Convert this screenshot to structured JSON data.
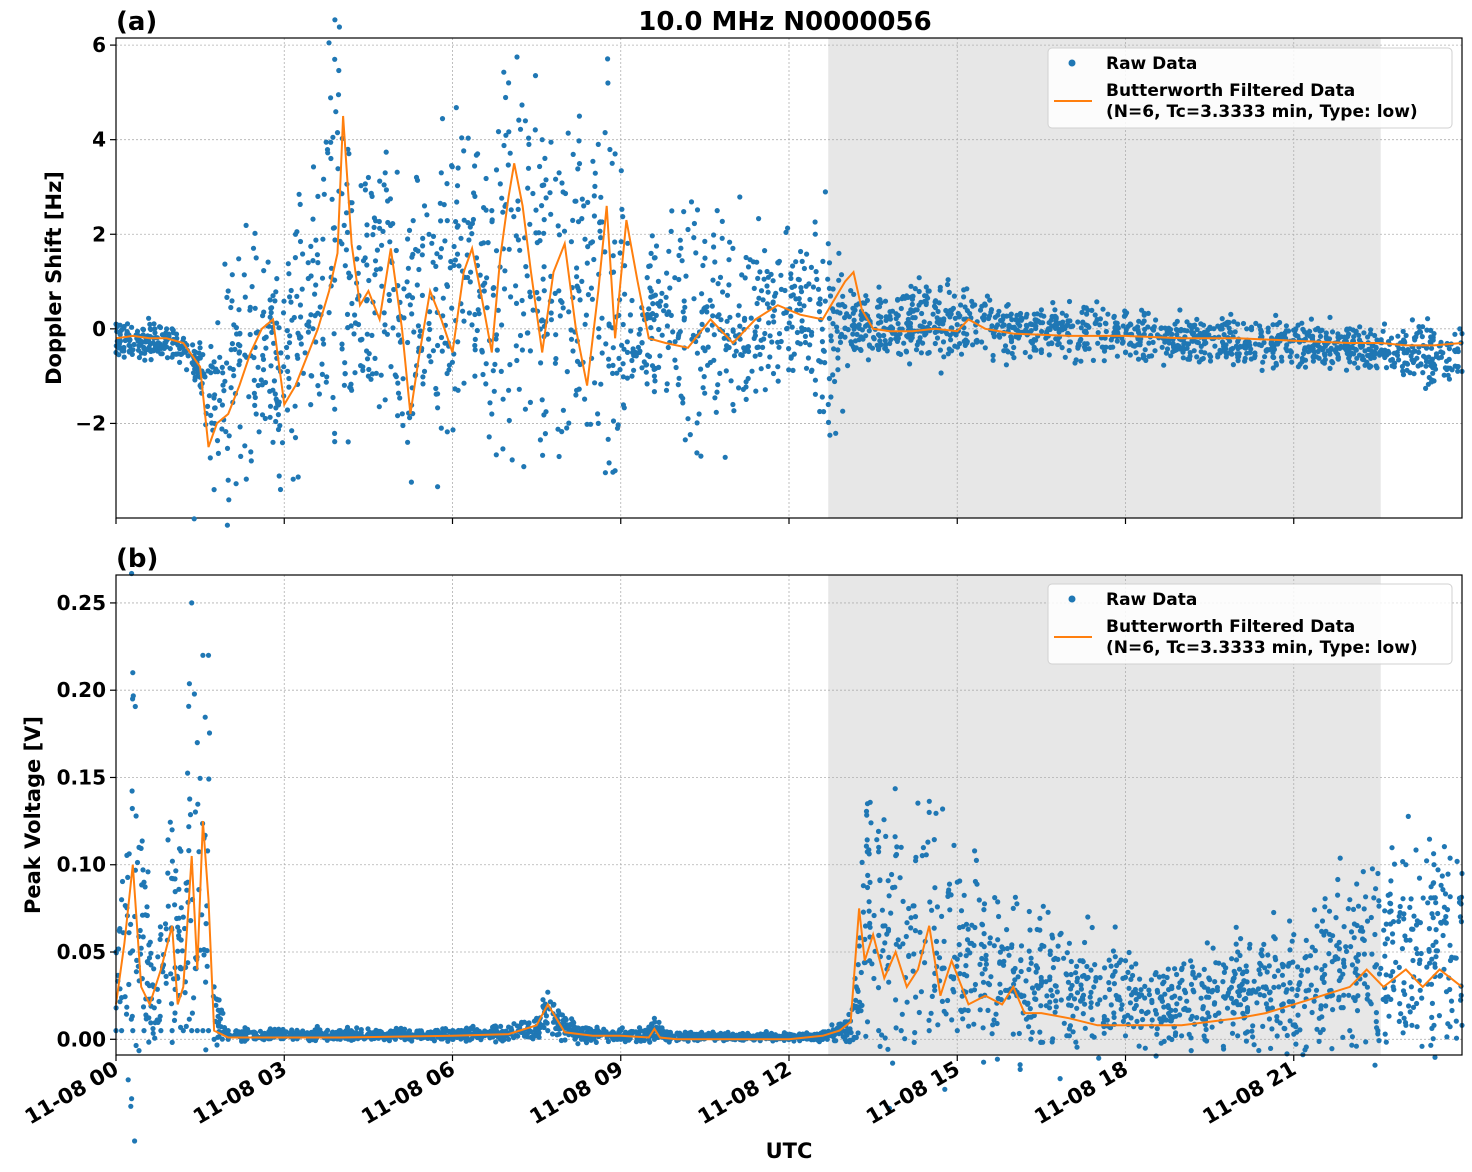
{
  "figure": {
    "title": "10.0 MHz N0000056",
    "xlabel": "UTC",
    "x_tick_labels": [
      "11-08 00",
      "11-08 03",
      "11-08 06",
      "11-08 09",
      "11-08 12",
      "11-08 15",
      "11-08 18",
      "11-08 21"
    ]
  },
  "colors": {
    "raw": "#1f77b4",
    "filtered": "#ff7f0e",
    "shade": "#e7e7e7",
    "grid": "#b0b0b0"
  },
  "chart_data": [
    {
      "type": "scatter",
      "panel_label": "(a)",
      "title": "10.0 MHz N0000056",
      "ylabel": "Doppler Shift [Hz]",
      "xlabel": "",
      "x_unit": "hours UTC on 11-08",
      "xlim": [
        0,
        24
      ],
      "ylim": [
        -4.0,
        6.15
      ],
      "y_ticks": [
        -2,
        0,
        2,
        4,
        6
      ],
      "y_tick_labels": [
        "−2",
        "0",
        "2",
        "4",
        "6"
      ],
      "grid": true,
      "shaded_x_range": [
        12.7,
        22.55
      ],
      "legend": {
        "position": "top-right",
        "entries": [
          "Raw Data",
          "Butterworth Filtered Data",
          "(N=6, Tc=3.3333 min, Type: low)"
        ]
      },
      "series": [
        {
          "name": "Raw Data",
          "style": "points",
          "envelope_x": [
            0,
            1.0,
            1.5,
            1.75,
            2.0,
            2.5,
            2.8,
            3.2,
            3.6,
            3.9,
            4.2,
            4.5,
            4.8,
            5.2,
            5.5,
            5.8,
            6.1,
            6.4,
            6.7,
            7.0,
            7.3,
            7.6,
            7.9,
            8.2,
            8.6,
            8.9,
            9.2,
            9.6,
            10.2,
            11.0,
            11.8,
            12.4,
            12.7,
            13.2,
            13.6,
            14.5,
            15.5,
            16.5,
            18.0,
            20.0,
            22.0,
            23.5,
            24.0
          ],
          "envelope_min": [
            -0.5,
            -0.6,
            -1.2,
            -3.4,
            -3.2,
            -1.8,
            -2.4,
            -2.3,
            -1.2,
            -1.7,
            -1.3,
            -1.0,
            -1.5,
            -2.4,
            -0.9,
            -2.1,
            -1.3,
            -1.0,
            -1.8,
            -1.3,
            -1.7,
            -1.5,
            -2.7,
            -1.4,
            -2.0,
            -3.0,
            -1.0,
            -1.0,
            -1.9,
            -1.6,
            -0.8,
            -0.9,
            -1.6,
            -0.4,
            -0.4,
            -0.5,
            -0.4,
            -0.5,
            -0.5,
            -0.6,
            -0.7,
            -1.1,
            -0.9
          ],
          "envelope_max": [
            0.1,
            0.0,
            -0.4,
            -0.7,
            0.8,
            1.5,
            0.7,
            2.0,
            2.8,
            5.7,
            2.5,
            3.2,
            3.3,
            1.9,
            2.6,
            3.3,
            3.4,
            2.8,
            2.5,
            5.2,
            4.4,
            4.0,
            3.3,
            2.7,
            3.9,
            3.7,
            0.6,
            1.5,
            2.1,
            1.7,
            1.4,
            1.3,
            1.8,
            0.5,
            0.6,
            0.8,
            0.5,
            0.4,
            0.3,
            0.1,
            0.0,
            -0.1,
            -0.1
          ]
        },
        {
          "name": "Butterworth Filtered Data (N=6, Tc=3.3333 min, Type: low)",
          "style": "line",
          "x": [
            0,
            0.3,
            0.6,
            0.9,
            1.2,
            1.5,
            1.65,
            1.8,
            2.0,
            2.2,
            2.4,
            2.6,
            2.8,
            3.0,
            3.2,
            3.4,
            3.6,
            3.8,
            3.95,
            4.05,
            4.2,
            4.35,
            4.5,
            4.7,
            4.9,
            5.1,
            5.25,
            5.4,
            5.6,
            5.8,
            6.0,
            6.2,
            6.35,
            6.5,
            6.7,
            6.85,
            7.0,
            7.1,
            7.25,
            7.4,
            7.6,
            7.8,
            8.0,
            8.2,
            8.4,
            8.6,
            8.75,
            8.9,
            9.1,
            9.3,
            9.5,
            9.8,
            10.2,
            10.6,
            11.0,
            11.4,
            11.8,
            12.2,
            12.6,
            13.0,
            13.15,
            13.3,
            13.5,
            13.8,
            14.2,
            14.6,
            15.0,
            15.2,
            15.5,
            16.0,
            17.0,
            18.0,
            19.0,
            20.0,
            21.0,
            22.0,
            22.55,
            23.0,
            23.5,
            24.0
          ],
          "y": [
            -0.2,
            -0.15,
            -0.2,
            -0.2,
            -0.3,
            -0.8,
            -2.5,
            -2.0,
            -1.8,
            -1.2,
            -0.5,
            0.0,
            0.2,
            -1.6,
            -1.2,
            -0.6,
            0.0,
            0.8,
            1.6,
            4.5,
            1.8,
            0.5,
            0.8,
            0.2,
            1.7,
            0.0,
            -1.8,
            -0.6,
            0.8,
            0.2,
            -0.5,
            1.2,
            1.7,
            0.8,
            -0.5,
            1.5,
            2.8,
            3.5,
            2.6,
            1.2,
            -0.5,
            1.2,
            1.8,
            0.0,
            -1.2,
            0.8,
            2.6,
            -0.2,
            2.3,
            1.0,
            -0.2,
            -0.3,
            -0.4,
            0.2,
            -0.3,
            0.2,
            0.5,
            0.3,
            0.2,
            1.0,
            1.2,
            0.4,
            0.0,
            -0.05,
            -0.05,
            0.0,
            -0.05,
            0.2,
            0.0,
            -0.1,
            -0.15,
            -0.15,
            -0.2,
            -0.2,
            -0.25,
            -0.3,
            -0.3,
            -0.35,
            -0.35,
            -0.3
          ]
        }
      ]
    },
    {
      "type": "scatter",
      "panel_label": "(b)",
      "title": "",
      "ylabel": "Peak Voltage [V]",
      "xlabel": "UTC",
      "x_unit": "hours UTC on 11-08",
      "xlim": [
        0,
        24
      ],
      "ylim": [
        -0.009,
        0.266
      ],
      "y_ticks": [
        0.0,
        0.05,
        0.1,
        0.15,
        0.2,
        0.25
      ],
      "y_tick_labels": [
        "0.00",
        "0.05",
        "0.10",
        "0.15",
        "0.20",
        "0.25"
      ],
      "grid": true,
      "shaded_x_range": [
        12.7,
        22.55
      ],
      "legend": {
        "position": "top-right",
        "entries": [
          "Raw Data",
          "Butterworth Filtered Data",
          "(N=6, Tc=3.3333 min, Type: low)"
        ]
      },
      "series": [
        {
          "name": "Raw Data",
          "style": "points",
          "envelope_x": [
            0,
            0.1,
            0.3,
            0.5,
            0.8,
            1.0,
            1.2,
            1.35,
            1.45,
            1.55,
            1.65,
            1.75,
            2.0,
            4.0,
            6.0,
            7.0,
            7.5,
            7.7,
            7.9,
            8.3,
            9.0,
            9.5,
            9.6,
            9.8,
            11.0,
            12.5,
            13.0,
            13.2,
            13.4,
            13.6,
            14.0,
            14.5,
            15.0,
            16.0,
            17.0,
            18.0,
            19.0,
            20.0,
            21.0,
            22.0,
            22.5,
            23.0,
            23.5,
            24.0
          ],
          "envelope_min": [
            0.005,
            0.005,
            0.005,
            0.005,
            0.005,
            0.005,
            0.005,
            0.005,
            0.005,
            0.005,
            0.005,
            0.0,
            0.0,
            0.0,
            0.0,
            0.0,
            0.002,
            0.005,
            0.003,
            0.0,
            0.0,
            0.0,
            0.0,
            0.0,
            0.0,
            0.0,
            0.0,
            0.001,
            0.01,
            0.005,
            0.005,
            0.005,
            0.005,
            0.003,
            0.002,
            0.002,
            0.002,
            0.002,
            0.003,
            0.005,
            0.005,
            0.008,
            0.008,
            0.008
          ],
          "envelope_max": [
            0.05,
            0.08,
            0.21,
            0.09,
            0.06,
            0.12,
            0.07,
            0.25,
            0.17,
            0.22,
            0.22,
            0.03,
            0.005,
            0.005,
            0.005,
            0.007,
            0.012,
            0.027,
            0.015,
            0.006,
            0.005,
            0.007,
            0.012,
            0.004,
            0.003,
            0.003,
            0.01,
            0.03,
            0.135,
            0.11,
            0.11,
            0.13,
            0.09,
            0.075,
            0.055,
            0.045,
            0.04,
            0.05,
            0.06,
            0.08,
            0.095,
            0.1,
            0.1,
            0.095
          ]
        },
        {
          "name": "Butterworth Filtered Data (N=6, Tc=3.3333 min, Type: low)",
          "style": "line",
          "x": [
            0,
            0.15,
            0.3,
            0.45,
            0.6,
            0.8,
            1.0,
            1.1,
            1.2,
            1.35,
            1.45,
            1.55,
            1.65,
            1.75,
            2.0,
            4.0,
            6.0,
            7.0,
            7.5,
            7.7,
            7.85,
            8.0,
            8.5,
            9.0,
            9.5,
            9.6,
            9.7,
            10.0,
            11.0,
            12.0,
            12.6,
            12.9,
            13.1,
            13.25,
            13.35,
            13.5,
            13.7,
            13.9,
            14.1,
            14.3,
            14.5,
            14.7,
            14.9,
            15.2,
            15.5,
            15.8,
            16.0,
            16.2,
            16.5,
            17.0,
            17.5,
            18.0,
            18.5,
            19.0,
            19.5,
            20.0,
            20.5,
            21.0,
            21.5,
            22.0,
            22.3,
            22.6,
            23.0,
            23.3,
            23.6,
            24.0
          ],
          "y": [
            0.02,
            0.055,
            0.1,
            0.03,
            0.02,
            0.04,
            0.065,
            0.02,
            0.03,
            0.105,
            0.04,
            0.125,
            0.08,
            0.005,
            0.001,
            0.001,
            0.002,
            0.003,
            0.008,
            0.02,
            0.012,
            0.004,
            0.002,
            0.002,
            0.001,
            0.006,
            0.001,
            0.0,
            0.0,
            0.0,
            0.002,
            0.005,
            0.01,
            0.075,
            0.045,
            0.06,
            0.035,
            0.05,
            0.03,
            0.04,
            0.065,
            0.025,
            0.045,
            0.02,
            0.025,
            0.02,
            0.03,
            0.015,
            0.015,
            0.012,
            0.008,
            0.008,
            0.008,
            0.008,
            0.01,
            0.012,
            0.015,
            0.02,
            0.025,
            0.03,
            0.04,
            0.03,
            0.04,
            0.03,
            0.04,
            0.03
          ]
        }
      ]
    }
  ]
}
